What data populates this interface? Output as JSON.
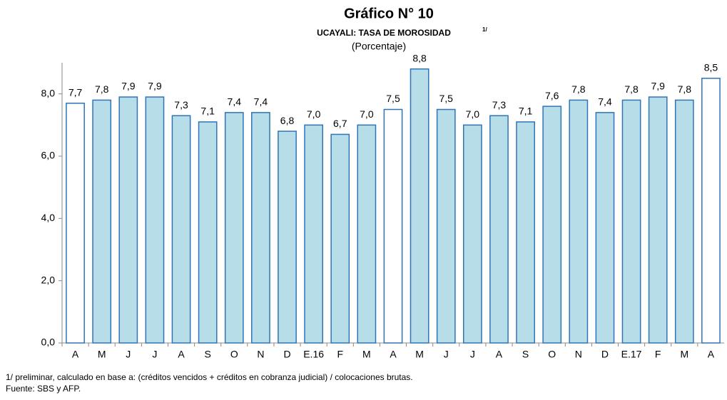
{
  "chart_data": {
    "type": "bar",
    "title": "Gráfico N° 10",
    "subtitle": "UCAYALI: TASA DE MOROSIDAD",
    "subtitle_note": "1/",
    "unit": "(Porcentaje)",
    "categories": [
      "A",
      "M",
      "J",
      "J",
      "A",
      "S",
      "O",
      "N",
      "D",
      "E.16",
      "F",
      "M",
      "A",
      "M",
      "J",
      "J",
      "A",
      "S",
      "O",
      "N",
      "D",
      "E.17",
      "F",
      "M",
      "A"
    ],
    "values": [
      7.7,
      7.8,
      7.9,
      7.9,
      7.3,
      7.1,
      7.4,
      7.4,
      6.8,
      7.0,
      6.7,
      7.0,
      7.5,
      8.8,
      7.5,
      7.0,
      7.3,
      7.1,
      7.6,
      7.8,
      7.4,
      7.8,
      7.9,
      7.8,
      8.5
    ],
    "value_labels": [
      "7,7",
      "7,8",
      "7,9",
      "7,9",
      "7,3",
      "7,1",
      "7,4",
      "7,4",
      "6,8",
      "7,0",
      "6,7",
      "7,0",
      "7,5",
      "8,8",
      "7,5",
      "7,0",
      "7,3",
      "7,1",
      "7,6",
      "7,8",
      "7,4",
      "7,8",
      "7,9",
      "7,8",
      "8,5"
    ],
    "colors": [
      "#ffffff",
      "#b7dde8",
      "#b7dde8",
      "#b7dde8",
      "#b7dde8",
      "#b7dde8",
      "#b7dde8",
      "#b7dde8",
      "#b7dde8",
      "#b7dde8",
      "#b7dde8",
      "#b7dde8",
      "#ffffff",
      "#b7dde8",
      "#b7dde8",
      "#b7dde8",
      "#b7dde8",
      "#b7dde8",
      "#b7dde8",
      "#b7dde8",
      "#b7dde8",
      "#b7dde8",
      "#b7dde8",
      "#b7dde8",
      "#ffffff"
    ],
    "edge_color": "#2e75b6",
    "ylim": [
      0,
      9
    ],
    "yticks": [
      {
        "value": 0,
        "label": "0,0"
      },
      {
        "value": 2,
        "label": "2,0"
      },
      {
        "value": 4,
        "label": "4,0"
      },
      {
        "value": 6,
        "label": "6,0"
      },
      {
        "value": 8,
        "label": "8,0"
      }
    ],
    "grid": false,
    "footnotes": [
      "1/ preliminar, calculado en base a: (créditos vencidos + créditos en cobranza judicial) / colocaciones brutas.",
      "Fuente: SBS  y AFP."
    ]
  }
}
